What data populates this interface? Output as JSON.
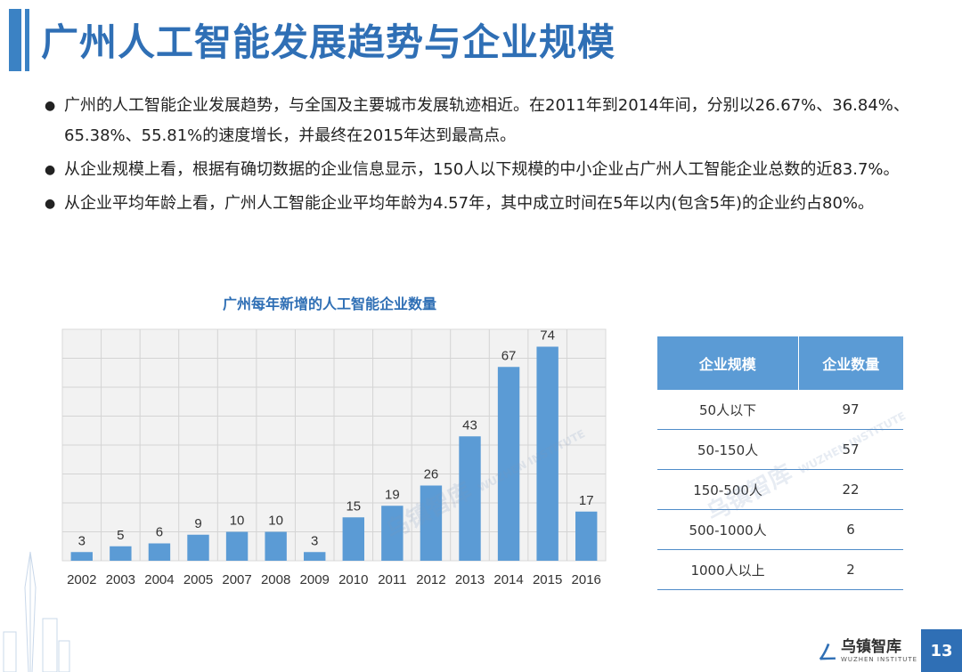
{
  "header": {
    "title": "广州人工智能发展趋势与企业规模"
  },
  "bullets": [
    "广州的人工智能企业发展趋势，与全国及主要城市发展轨迹相近。在2011年到2014年间，分别以26.67%、36.84%、65.38%、55.81%的速度增长，并最终在2015年达到最高点。",
    "从企业规模上看，根据有确切数据的企业信息显示，150人以下规模的中小企业占广州人工智能企业总数的近83.7%。",
    "从企业平均年龄上看，广州人工智能企业平均年龄为4.57年，其中成立时间在5年以内(包含5年)的企业约占80%。"
  ],
  "chart_data": {
    "type": "bar",
    "title": "广州每年新增的人工智能企业数量",
    "categories": [
      "2002",
      "2003",
      "2004",
      "2005",
      "2007",
      "2008",
      "2009",
      "2010",
      "2011",
      "2012",
      "2013",
      "2014",
      "2015",
      "2016"
    ],
    "values": [
      3,
      5,
      6,
      9,
      10,
      10,
      3,
      15,
      19,
      26,
      43,
      67,
      74,
      17
    ],
    "xlabel": "",
    "ylabel": "",
    "ylim": [
      0,
      80
    ],
    "grid": true,
    "bar_color": "#5b9bd5"
  },
  "table": {
    "headers": [
      "企业规模",
      "企业数量"
    ],
    "rows": [
      [
        "50人以下",
        "97"
      ],
      [
        "50-150人",
        "57"
      ],
      [
        "150-500人",
        "22"
      ],
      [
        "500-1000人",
        "6"
      ],
      [
        "1000人以上",
        "2"
      ]
    ]
  },
  "watermark": {
    "cn": "乌镇智库",
    "en": "WUZHEN INSTITUTE"
  },
  "footer": {
    "logo_cn": "乌镇智库",
    "logo_en": "WUZHEN INSTITUTE",
    "page_number": "13"
  },
  "colors": {
    "accent": "#2f6fb5",
    "bar": "#5b9bd5",
    "table_header": "#5b9bd5"
  }
}
